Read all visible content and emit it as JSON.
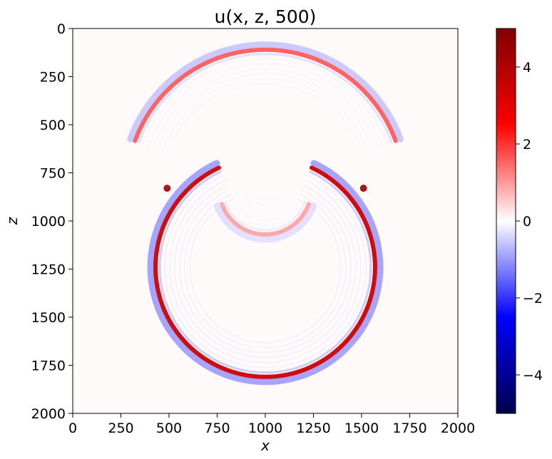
{
  "chart_data": {
    "type": "heatmap",
    "title": "u(x, z, 500)",
    "xlabel": "x",
    "ylabel": "z",
    "xlim": [
      0,
      2000
    ],
    "ylim": [
      2000,
      0
    ],
    "x_ticks": [
      0,
      250,
      500,
      750,
      1000,
      1250,
      1500,
      1750,
      2000
    ],
    "y_ticks": [
      0,
      250,
      500,
      750,
      1000,
      1250,
      1500,
      1750,
      2000
    ],
    "colorbar": {
      "range": [
        -5,
        5
      ],
      "ticks": [
        4,
        2,
        0,
        -2,
        -4
      ],
      "tick_labels": [
        "4",
        "2",
        "0",
        "−2",
        "−4"
      ],
      "colormap": "seismic",
      "colors": [
        "#00004c",
        "#0000ff",
        "#ffffff",
        "#ff0000",
        "#7f0000"
      ]
    },
    "wavefronts": [
      {
        "center": [
          1000,
          830
        ],
        "radius": 720,
        "angle_from_deg": 200,
        "angle_to_deg": 340,
        "peak": 1.6,
        "trough": -0.9,
        "description": "upper reflected arc"
      },
      {
        "center": [
          1000,
          830
        ],
        "radius": 240,
        "angle_from_deg": 20,
        "angle_to_deg": 160,
        "peak": 0.9,
        "trough": -0.5,
        "description": "inner lower arc"
      },
      {
        "center": [
          1000,
          1240
        ],
        "radius": 570,
        "angle_from_deg": 0,
        "angle_to_deg": 360,
        "gap_deg": [
          245,
          295
        ],
        "peak": 3.5,
        "trough": -1.6,
        "description": "lower transmitted circle"
      }
    ],
    "hotspots": [
      {
        "x": 490,
        "z": 830,
        "value": 4.5
      },
      {
        "x": 1510,
        "z": 830,
        "value": 4.5
      }
    ]
  }
}
